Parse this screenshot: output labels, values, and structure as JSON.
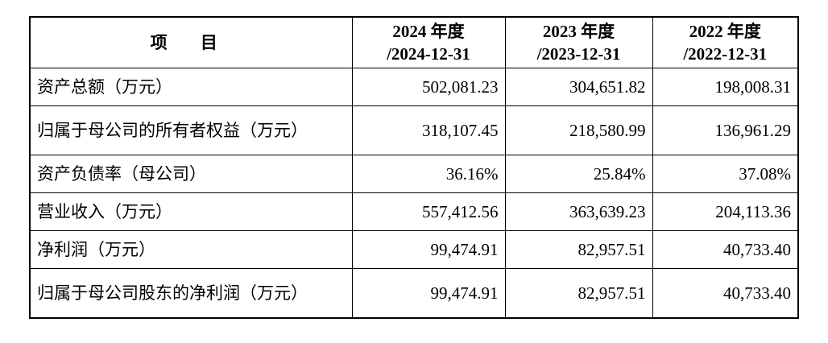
{
  "table": {
    "headers": {
      "item": "项 目",
      "col2024_line1": "2024 年度",
      "col2024_line2": "/2024-12-31",
      "col2023_line1": "2023 年度",
      "col2023_line2": "/2023-12-31",
      "col2022_line1": "2022 年度",
      "col2022_line2": "/2022-12-31"
    },
    "rows": [
      {
        "label": "资产总额（万元）",
        "v2024": "502,081.23",
        "v2023": "304,651.82",
        "v2022": "198,008.31"
      },
      {
        "label": "归属于母公司的所有者权益（万元）",
        "v2024": "318,107.45",
        "v2023": "218,580.99",
        "v2022": "136,961.29"
      },
      {
        "label": "资产负债率（母公司）",
        "v2024": "36.16%",
        "v2023": "25.84%",
        "v2022": "37.08%"
      },
      {
        "label": "营业收入（万元）",
        "v2024": "557,412.56",
        "v2023": "363,639.23",
        "v2022": "204,113.36"
      },
      {
        "label": "净利润（万元）",
        "v2024": "99,474.91",
        "v2023": "82,957.51",
        "v2022": "40,733.40"
      },
      {
        "label": "归属于母公司股东的净利润（万元）",
        "v2024": "99,474.91",
        "v2023": "82,957.51",
        "v2022": "40,733.40"
      }
    ]
  }
}
